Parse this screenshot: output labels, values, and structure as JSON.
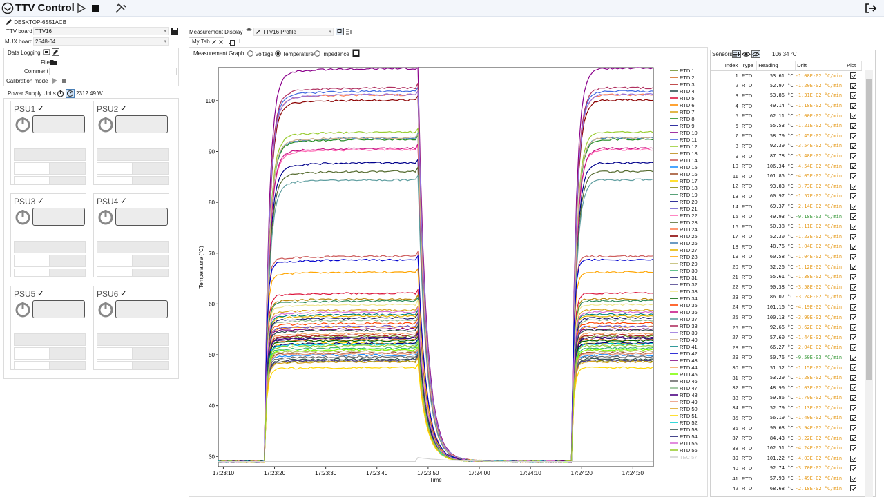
{
  "app": {
    "title": "TTV Control",
    "host": "DESKTOP-6S51ACB"
  },
  "left": {
    "ttv_board_label": "TTV board",
    "ttv_board_value": "TTV16",
    "mux_board_label": "MUX board",
    "mux_board_value": "2548-04",
    "data_logging_label": "Data Logging",
    "file_label": "File",
    "comment_label": "Comment",
    "calibration_label": "Calibration mode",
    "psu_label": "Power Supply Units",
    "psu_power_total": "2312.49 W",
    "psus": [
      {
        "name": "PSU1",
        "check": "✓"
      },
      {
        "name": "PSU2",
        "check": "✓"
      },
      {
        "name": "PSU3",
        "check": "✓"
      },
      {
        "name": "PSU4",
        "check": "✓"
      },
      {
        "name": "PSU5",
        "check": "✓"
      },
      {
        "name": "PSU6",
        "check": "✓"
      }
    ]
  },
  "display": {
    "label": "Measurement Display",
    "profile": "TTV16 Profile",
    "tab": "My Tab",
    "graph_label": "Measurement Graph",
    "radios": [
      "Voltage",
      "Temperature",
      "Impedance"
    ],
    "selected_radio": "Temperature"
  },
  "sensors": {
    "label": "Sensors",
    "top_value": "106.34 °C",
    "headers": [
      "Index",
      "Type",
      "Reading",
      "Drift",
      "Plot"
    ],
    "rows": [
      [
        "1",
        "RTD",
        "53.61 °C",
        "-1.08E-02 °C/min"
      ],
      [
        "2",
        "RTD",
        "52.97 °C",
        "-1.20E-02 °C/min"
      ],
      [
        "3",
        "RTD",
        "53.86 °C",
        "-1.31E-02 °C/min"
      ],
      [
        "4",
        "RTD",
        "49.14 °C",
        "-1.18E-02 °C/min"
      ],
      [
        "5",
        "RTD",
        "62.11 °C",
        "-1.00E-02 °C/min"
      ],
      [
        "6",
        "RTD",
        "55.53 °C",
        "-1.21E-02 °C/min"
      ],
      [
        "7",
        "RTD",
        "58.79 °C",
        "-1.45E-02 °C/min"
      ],
      [
        "8",
        "RTD",
        "92.39 °C",
        "-3.54E-02 °C/min"
      ],
      [
        "9",
        "RTD",
        "87.78 °C",
        "-3.48E-02 °C/min"
      ],
      [
        "10",
        "RTD",
        "106.34 °C",
        "-4.54E-02 °C/min"
      ],
      [
        "11",
        "RTD",
        "101.85 °C",
        "-4.05E-02 °C/min"
      ],
      [
        "12",
        "RTD",
        "93.83 °C",
        "-3.73E-02 °C/min"
      ],
      [
        "13",
        "RTD",
        "60.97 °C",
        "-1.57E-02 °C/min"
      ],
      [
        "14",
        "RTD",
        "69.37 °C",
        "-2.14E-02 °C/min"
      ],
      [
        "15",
        "RTD",
        "49.93 °C",
        "-9.18E-03 °C/min"
      ],
      [
        "16",
        "RTD",
        "50.38 °C",
        "-1.11E-02 °C/min"
      ],
      [
        "17",
        "RTD",
        "52.30 °C",
        "-1.23E-02 °C/min"
      ],
      [
        "18",
        "RTD",
        "48.76 °C",
        "-1.04E-02 °C/min"
      ],
      [
        "19",
        "RTD",
        "60.58 °C",
        "-1.04E-02 °C/min"
      ],
      [
        "20",
        "RTD",
        "52.26 °C",
        "-1.12E-02 °C/min"
      ],
      [
        "21",
        "RTD",
        "55.61 °C",
        "-1.38E-02 °C/min"
      ],
      [
        "22",
        "RTD",
        "90.38 °C",
        "-3.58E-02 °C/min"
      ],
      [
        "23",
        "RTD",
        "86.07 °C",
        "-3.24E-02 °C/min"
      ],
      [
        "24",
        "RTD",
        "101.16 °C",
        "-4.19E-02 °C/min"
      ],
      [
        "25",
        "RTD",
        "100.13 °C",
        "-3.99E-02 °C/min"
      ],
      [
        "26",
        "RTD",
        "92.66 °C",
        "-3.62E-02 °C/min"
      ],
      [
        "27",
        "RTD",
        "57.60 °C",
        "-1.44E-02 °C/min"
      ],
      [
        "28",
        "RTD",
        "66.27 °C",
        "-2.04E-02 °C/min"
      ],
      [
        "29",
        "RTD",
        "50.76 °C",
        "-9.50E-03 °C/min"
      ],
      [
        "30",
        "RTD",
        "51.32 °C",
        "-1.15E-02 °C/min"
      ],
      [
        "31",
        "RTD",
        "53.29 °C",
        "-1.28E-02 °C/min"
      ],
      [
        "32",
        "RTD",
        "48.90 °C",
        "-1.03E-02 °C/min"
      ],
      [
        "33",
        "RTD",
        "59.86 °C",
        "-1.79E-02 °C/min"
      ],
      [
        "34",
        "RTD",
        "52.79 °C",
        "-1.13E-02 °C/min"
      ],
      [
        "35",
        "RTD",
        "56.19 °C",
        "-1.40E-02 °C/min"
      ],
      [
        "36",
        "RTD",
        "90.63 °C",
        "-3.94E-02 °C/min"
      ],
      [
        "37",
        "RTD",
        "84.43 °C",
        "-3.22E-02 °C/min"
      ],
      [
        "38",
        "RTD",
        "102.51 °C",
        "-4.24E-02 °C/min"
      ],
      [
        "39",
        "RTD",
        "101.22 °C",
        "-4.03E-02 °C/min"
      ],
      [
        "40",
        "RTD",
        "92.74 °C",
        "-3.70E-02 °C/min"
      ],
      [
        "41",
        "RTD",
        "57.93 °C",
        "-1.49E-02 °C/min"
      ],
      [
        "42",
        "RTD",
        "68.68 °C",
        "-2.18E-02 °C/min"
      ]
    ]
  },
  "chart_data": {
    "type": "line",
    "xlabel": "Time",
    "ylabel": "Temperature (°C)",
    "ylim": [
      28,
      106.5
    ],
    "xlim": [
      "17:23:09",
      "17:24:34"
    ],
    "x_ticks": [
      "17:23:10",
      "17:23:20",
      "17:23:30",
      "17:23:40",
      "17:23:50",
      "17:24:00",
      "17:24:10",
      "17:24:20",
      "17:24:30"
    ],
    "y_ticks": [
      30,
      40,
      50,
      60,
      70,
      80,
      90,
      100
    ],
    "profile_times": [
      "17:23:09",
      "17:23:18",
      "17:23:48",
      "17:24:18",
      "17:24:34"
    ],
    "legend": [
      "RTD 1",
      "RTD 2",
      "RTD 3",
      "RTD 4",
      "RTD 5",
      "RTD 6",
      "RTD 7",
      "RTD 8",
      "RTD 9",
      "RTD 10",
      "RTD 11",
      "RTD 12",
      "RTD 13",
      "RTD 14",
      "RTD 15",
      "RTD 16",
      "RTD 17",
      "RTD 18",
      "RTD 19",
      "RTD 20",
      "RTD 21",
      "RTD 22",
      "RTD 23",
      "RTD 24",
      "RTD 25",
      "RTD 26",
      "RTD 27",
      "RTD 28",
      "RTD 29",
      "RTD 30",
      "RTD 31",
      "RTD 32",
      "RTD 33",
      "RTD 34",
      "RTD 35",
      "RTD 36",
      "RTD 37",
      "RTD 38",
      "RTD 39",
      "RTD 40",
      "RTD 41",
      "RTD 42",
      "RTD 43",
      "RTD 44",
      "RTD 45",
      "RTD 46",
      "RTD 47",
      "RTD 48",
      "RTD 49",
      "RTD 50",
      "RTD 51",
      "RTD 52",
      "RTD 53",
      "RTD 54",
      "RTD 55",
      "RTD 56",
      "TEC 57"
    ],
    "colors": [
      "#6b8e23",
      "#d2691e",
      "#b22222",
      "#2f4f4f",
      "#dc143c",
      "#ff8c00",
      "#daa520",
      "#228b22",
      "#00008b",
      "#8b008b",
      "#4169e1",
      "#9acd32",
      "#b8860b",
      "#cd5c5c",
      "#1e90ff",
      "#a0522d",
      "#ffd700",
      "#808000",
      "#2e8b57",
      "#000080",
      "#6a5acd",
      "#ff69b4",
      "#556b2f",
      "#ff7f50",
      "#8b0000",
      "#4682b4",
      "#e6b800",
      "#ffa500",
      "#bdb76b",
      "#3cb371",
      "#191970",
      "#483d8b",
      "#f0e68c",
      "#006400",
      "#ff4500",
      "#c71585",
      "#5f9ea0",
      "#b03060",
      "#9370db",
      "#d2b48c",
      "#008080",
      "#0000cd",
      "#800080",
      "#f4a460",
      "#7fff00",
      "#696969",
      "#8fbc8f",
      "#4b0082",
      "#e9967a",
      "#daa520",
      "#ffd700",
      "#00ced1",
      "#2f4f4f",
      "#191970",
      "#da70d6",
      "#9acd32",
      "#d3d3d3"
    ],
    "series_steady": [
      53.61,
      52.97,
      53.86,
      49.14,
      62.11,
      55.53,
      58.79,
      92.39,
      87.78,
      106.34,
      101.85,
      93.83,
      60.97,
      69.37,
      49.93,
      50.38,
      52.3,
      48.76,
      60.58,
      52.26,
      55.61,
      90.38,
      86.07,
      101.16,
      100.13,
      92.66,
      57.6,
      66.27,
      50.76,
      51.32,
      53.29,
      48.9,
      59.86,
      52.79,
      56.19,
      90.63,
      84.43,
      102.51,
      101.22,
      92.74,
      57.93,
      68.68,
      55.1,
      54.2,
      51.0,
      49.6,
      56.8,
      53.4,
      50.2,
      48.6,
      47.5,
      52.1,
      54.8,
      57.2,
      58.4,
      51.8,
      29.0
    ],
    "baseline": 29.0
  }
}
